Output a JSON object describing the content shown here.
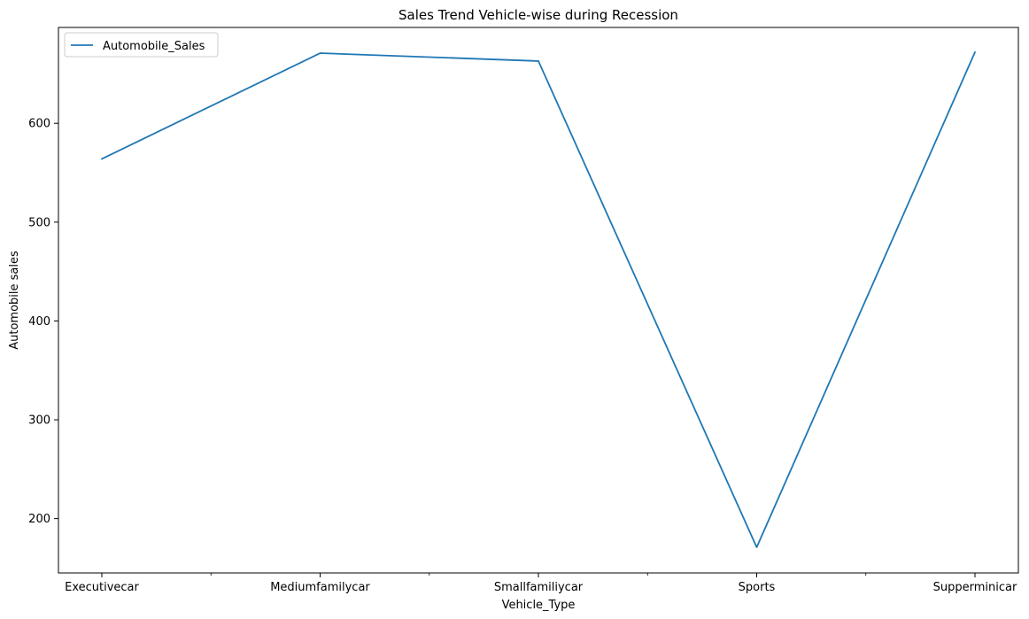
{
  "chart_data": {
    "type": "line",
    "title": "Sales Trend Vehicle-wise during Recession",
    "xlabel": "Vehicle_Type",
    "ylabel": "Automobile sales",
    "categories": [
      "Executivecar",
      "Mediumfamilycar",
      "Smallfamiliycar",
      "Sports",
      "Supperminicar"
    ],
    "series": [
      {
        "name": "Automobile_Sales",
        "values": [
          564,
          671,
          663,
          171,
          672
        ],
        "color": "#1f77b4"
      }
    ],
    "yticks": [
      200,
      300,
      400,
      500,
      600
    ],
    "ylim": [
      145,
      697
    ],
    "grid": false,
    "legend": "top-left"
  }
}
